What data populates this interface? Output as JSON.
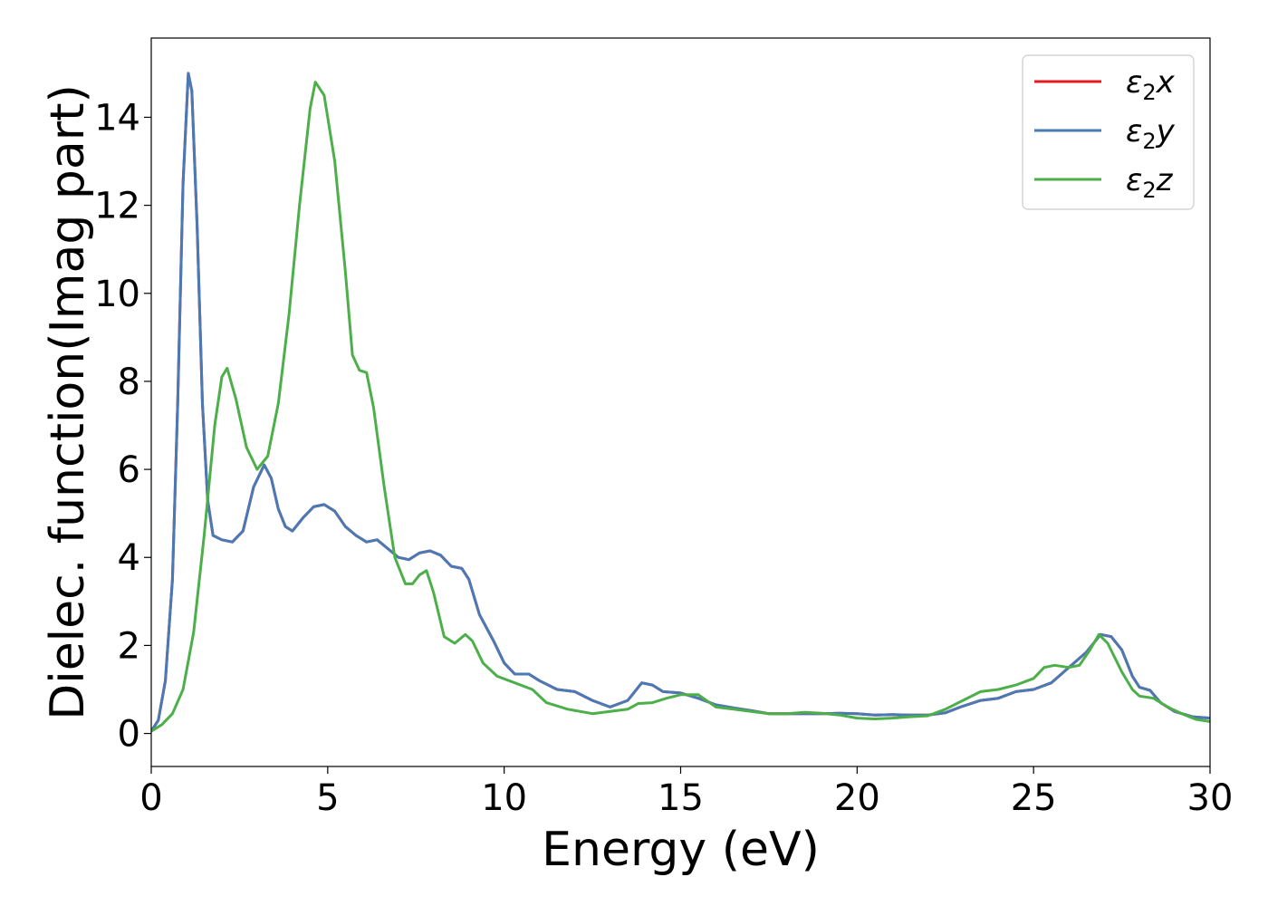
{
  "chart_data": {
    "type": "line",
    "xlabel": "Energy (eV)",
    "ylabel": "Dielec. function(Imag part)",
    "xlim": [
      0,
      30
    ],
    "ylim": [
      -0.75,
      15.8
    ],
    "xticks": [
      0,
      5,
      10,
      15,
      20,
      25,
      30
    ],
    "yticks": [
      0,
      2,
      4,
      6,
      8,
      10,
      12,
      14
    ],
    "grid": false,
    "legend_position": "top-right",
    "series": [
      {
        "name": "ε₂x",
        "legend_base": "ε",
        "legend_sub": "2",
        "legend_suffix": "x",
        "color": "#e41a1c",
        "points": [
          [
            0,
            0.05
          ],
          [
            0.2,
            0.3
          ],
          [
            0.4,
            1.2
          ],
          [
            0.6,
            3.5
          ],
          [
            0.75,
            7.5
          ],
          [
            0.9,
            12.5
          ],
          [
            1.05,
            15.0
          ],
          [
            1.15,
            14.6
          ],
          [
            1.3,
            11.5
          ],
          [
            1.45,
            7.5
          ],
          [
            1.6,
            5.3
          ],
          [
            1.75,
            4.5
          ],
          [
            2.0,
            4.4
          ],
          [
            2.3,
            4.35
          ],
          [
            2.6,
            4.6
          ],
          [
            2.9,
            5.6
          ],
          [
            3.2,
            6.1
          ],
          [
            3.4,
            5.8
          ],
          [
            3.6,
            5.1
          ],
          [
            3.8,
            4.7
          ],
          [
            4.0,
            4.6
          ],
          [
            4.3,
            4.9
          ],
          [
            4.6,
            5.15
          ],
          [
            4.9,
            5.2
          ],
          [
            5.2,
            5.05
          ],
          [
            5.5,
            4.7
          ],
          [
            5.8,
            4.5
          ],
          [
            6.1,
            4.35
          ],
          [
            6.4,
            4.4
          ],
          [
            6.7,
            4.2
          ],
          [
            7.0,
            4.0
          ],
          [
            7.3,
            3.95
          ],
          [
            7.6,
            4.1
          ],
          [
            7.9,
            4.15
          ],
          [
            8.2,
            4.05
          ],
          [
            8.5,
            3.8
          ],
          [
            8.8,
            3.75
          ],
          [
            9.0,
            3.5
          ],
          [
            9.3,
            2.7
          ],
          [
            9.7,
            2.1
          ],
          [
            10.0,
            1.6
          ],
          [
            10.3,
            1.35
          ],
          [
            10.7,
            1.35
          ],
          [
            11.0,
            1.2
          ],
          [
            11.5,
            1.0
          ],
          [
            12.0,
            0.95
          ],
          [
            12.5,
            0.75
          ],
          [
            13.0,
            0.6
          ],
          [
            13.5,
            0.75
          ],
          [
            13.9,
            1.15
          ],
          [
            14.2,
            1.1
          ],
          [
            14.5,
            0.95
          ],
          [
            15.0,
            0.92
          ],
          [
            15.5,
            0.8
          ],
          [
            16.0,
            0.65
          ],
          [
            16.5,
            0.58
          ],
          [
            17.0,
            0.52
          ],
          [
            17.5,
            0.45
          ],
          [
            18.0,
            0.45
          ],
          [
            18.5,
            0.45
          ],
          [
            19.0,
            0.45
          ],
          [
            19.5,
            0.46
          ],
          [
            20.0,
            0.45
          ],
          [
            20.5,
            0.42
          ],
          [
            21.0,
            0.43
          ],
          [
            21.5,
            0.42
          ],
          [
            22.0,
            0.42
          ],
          [
            22.5,
            0.47
          ],
          [
            23.0,
            0.62
          ],
          [
            23.5,
            0.75
          ],
          [
            24.0,
            0.8
          ],
          [
            24.5,
            0.95
          ],
          [
            25.0,
            1.0
          ],
          [
            25.5,
            1.15
          ],
          [
            26.0,
            1.5
          ],
          [
            26.5,
            1.85
          ],
          [
            26.9,
            2.25
          ],
          [
            27.2,
            2.2
          ],
          [
            27.5,
            1.9
          ],
          [
            27.8,
            1.3
          ],
          [
            28.0,
            1.05
          ],
          [
            28.3,
            0.98
          ],
          [
            28.6,
            0.7
          ],
          [
            29.0,
            0.5
          ],
          [
            29.5,
            0.38
          ],
          [
            30.0,
            0.35
          ]
        ]
      },
      {
        "name": "ε₂y",
        "legend_base": "ε",
        "legend_sub": "2",
        "legend_suffix": "y",
        "color": "#4a7ab5",
        "points": [
          [
            0,
            0.05
          ],
          [
            0.2,
            0.3
          ],
          [
            0.4,
            1.2
          ],
          [
            0.6,
            3.5
          ],
          [
            0.75,
            7.5
          ],
          [
            0.9,
            12.5
          ],
          [
            1.05,
            15.0
          ],
          [
            1.15,
            14.6
          ],
          [
            1.3,
            11.5
          ],
          [
            1.45,
            7.5
          ],
          [
            1.6,
            5.3
          ],
          [
            1.75,
            4.5
          ],
          [
            2.0,
            4.4
          ],
          [
            2.3,
            4.35
          ],
          [
            2.6,
            4.6
          ],
          [
            2.9,
            5.6
          ],
          [
            3.2,
            6.1
          ],
          [
            3.4,
            5.8
          ],
          [
            3.6,
            5.1
          ],
          [
            3.8,
            4.7
          ],
          [
            4.0,
            4.6
          ],
          [
            4.3,
            4.9
          ],
          [
            4.6,
            5.15
          ],
          [
            4.9,
            5.2
          ],
          [
            5.2,
            5.05
          ],
          [
            5.5,
            4.7
          ],
          [
            5.8,
            4.5
          ],
          [
            6.1,
            4.35
          ],
          [
            6.4,
            4.4
          ],
          [
            6.7,
            4.2
          ],
          [
            7.0,
            4.0
          ],
          [
            7.3,
            3.95
          ],
          [
            7.6,
            4.1
          ],
          [
            7.9,
            4.15
          ],
          [
            8.2,
            4.05
          ],
          [
            8.5,
            3.8
          ],
          [
            8.8,
            3.75
          ],
          [
            9.0,
            3.5
          ],
          [
            9.3,
            2.7
          ],
          [
            9.7,
            2.1
          ],
          [
            10.0,
            1.6
          ],
          [
            10.3,
            1.35
          ],
          [
            10.7,
            1.35
          ],
          [
            11.0,
            1.2
          ],
          [
            11.5,
            1.0
          ],
          [
            12.0,
            0.95
          ],
          [
            12.5,
            0.75
          ],
          [
            13.0,
            0.6
          ],
          [
            13.5,
            0.75
          ],
          [
            13.9,
            1.15
          ],
          [
            14.2,
            1.1
          ],
          [
            14.5,
            0.95
          ],
          [
            15.0,
            0.92
          ],
          [
            15.5,
            0.8
          ],
          [
            16.0,
            0.65
          ],
          [
            16.5,
            0.58
          ],
          [
            17.0,
            0.52
          ],
          [
            17.5,
            0.45
          ],
          [
            18.0,
            0.45
          ],
          [
            18.5,
            0.45
          ],
          [
            19.0,
            0.45
          ],
          [
            19.5,
            0.46
          ],
          [
            20.0,
            0.45
          ],
          [
            20.5,
            0.42
          ],
          [
            21.0,
            0.43
          ],
          [
            21.5,
            0.42
          ],
          [
            22.0,
            0.42
          ],
          [
            22.5,
            0.47
          ],
          [
            23.0,
            0.62
          ],
          [
            23.5,
            0.75
          ],
          [
            24.0,
            0.8
          ],
          [
            24.5,
            0.95
          ],
          [
            25.0,
            1.0
          ],
          [
            25.5,
            1.15
          ],
          [
            26.0,
            1.5
          ],
          [
            26.5,
            1.85
          ],
          [
            26.9,
            2.25
          ],
          [
            27.2,
            2.2
          ],
          [
            27.5,
            1.9
          ],
          [
            27.8,
            1.3
          ],
          [
            28.0,
            1.05
          ],
          [
            28.3,
            0.98
          ],
          [
            28.6,
            0.7
          ],
          [
            29.0,
            0.5
          ],
          [
            29.5,
            0.38
          ],
          [
            30.0,
            0.35
          ]
        ]
      },
      {
        "name": "ε₂z",
        "legend_base": "ε",
        "legend_sub": "2",
        "legend_suffix": "z",
        "color": "#4daf4a",
        "points": [
          [
            0,
            0.05
          ],
          [
            0.3,
            0.2
          ],
          [
            0.6,
            0.45
          ],
          [
            0.9,
            1.0
          ],
          [
            1.2,
            2.3
          ],
          [
            1.5,
            4.5
          ],
          [
            1.8,
            7.0
          ],
          [
            2.0,
            8.1
          ],
          [
            2.15,
            8.3
          ],
          [
            2.4,
            7.6
          ],
          [
            2.7,
            6.5
          ],
          [
            3.0,
            6.0
          ],
          [
            3.3,
            6.3
          ],
          [
            3.6,
            7.5
          ],
          [
            3.9,
            9.5
          ],
          [
            4.2,
            12.0
          ],
          [
            4.5,
            14.2
          ],
          [
            4.65,
            14.8
          ],
          [
            4.9,
            14.5
          ],
          [
            5.2,
            13.0
          ],
          [
            5.5,
            10.5
          ],
          [
            5.7,
            8.6
          ],
          [
            5.9,
            8.25
          ],
          [
            6.1,
            8.2
          ],
          [
            6.3,
            7.4
          ],
          [
            6.6,
            5.6
          ],
          [
            6.9,
            4.0
          ],
          [
            7.2,
            3.4
          ],
          [
            7.4,
            3.4
          ],
          [
            7.6,
            3.6
          ],
          [
            7.8,
            3.7
          ],
          [
            8.0,
            3.2
          ],
          [
            8.3,
            2.2
          ],
          [
            8.6,
            2.05
          ],
          [
            8.9,
            2.25
          ],
          [
            9.1,
            2.1
          ],
          [
            9.4,
            1.6
          ],
          [
            9.8,
            1.3
          ],
          [
            10.3,
            1.15
          ],
          [
            10.8,
            1.0
          ],
          [
            11.2,
            0.7
          ],
          [
            11.8,
            0.55
          ],
          [
            12.5,
            0.45
          ],
          [
            13.0,
            0.5
          ],
          [
            13.5,
            0.55
          ],
          [
            13.8,
            0.68
          ],
          [
            14.2,
            0.7
          ],
          [
            14.6,
            0.8
          ],
          [
            15.0,
            0.88
          ],
          [
            15.5,
            0.88
          ],
          [
            16.0,
            0.6
          ],
          [
            16.5,
            0.55
          ],
          [
            17.0,
            0.5
          ],
          [
            17.5,
            0.45
          ],
          [
            18.0,
            0.45
          ],
          [
            18.5,
            0.48
          ],
          [
            19.0,
            0.46
          ],
          [
            19.5,
            0.42
          ],
          [
            20.0,
            0.35
          ],
          [
            20.5,
            0.33
          ],
          [
            21.0,
            0.35
          ],
          [
            21.5,
            0.38
          ],
          [
            22.0,
            0.4
          ],
          [
            22.5,
            0.55
          ],
          [
            23.0,
            0.75
          ],
          [
            23.5,
            0.95
          ],
          [
            24.0,
            1.0
          ],
          [
            24.5,
            1.1
          ],
          [
            25.0,
            1.25
          ],
          [
            25.3,
            1.5
          ],
          [
            25.6,
            1.55
          ],
          [
            26.0,
            1.5
          ],
          [
            26.3,
            1.55
          ],
          [
            26.6,
            1.9
          ],
          [
            26.85,
            2.25
          ],
          [
            27.1,
            2.05
          ],
          [
            27.5,
            1.4
          ],
          [
            27.8,
            1.0
          ],
          [
            28.0,
            0.85
          ],
          [
            28.4,
            0.8
          ],
          [
            28.8,
            0.6
          ],
          [
            29.2,
            0.45
          ],
          [
            29.6,
            0.32
          ],
          [
            30.0,
            0.27
          ]
        ]
      }
    ]
  }
}
